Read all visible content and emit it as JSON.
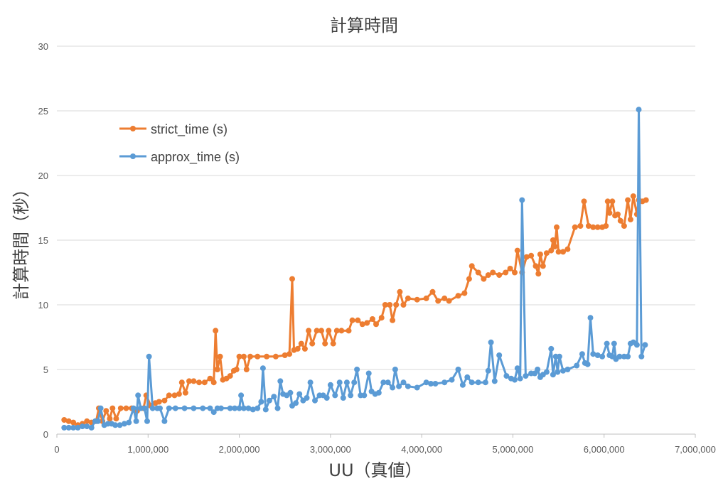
{
  "chart_data": {
    "type": "line",
    "title": "計算時間",
    "xlabel": "UU（真値）",
    "ylabel": "計算時間（秒）",
    "xlim": [
      0,
      7000000
    ],
    "ylim": [
      0,
      30
    ],
    "x_ticks": [
      0,
      1000000,
      2000000,
      3000000,
      4000000,
      5000000,
      6000000,
      7000000
    ],
    "x_tick_labels": [
      "0",
      "1,000,000",
      "2,000,000",
      "3,000,000",
      "4,000,000",
      "5,000,000",
      "6,000,000",
      "7,000,000"
    ],
    "y_ticks": [
      0,
      5,
      10,
      15,
      20,
      25,
      30
    ],
    "y_tick_labels": [
      "0",
      "5",
      "10",
      "15",
      "20",
      "25",
      "30"
    ],
    "grid": "horizontal",
    "legend_position": "upper-left",
    "colors": {
      "strict": "#ed7d31",
      "approx": "#5b9bd5",
      "grid": "#d9d9d9",
      "axis": "#bfbfbf"
    },
    "series": [
      {
        "name": "strict_time (s)",
        "points": [
          [
            80000,
            1.1
          ],
          [
            130000,
            1.0
          ],
          [
            180000,
            0.9
          ],
          [
            230000,
            0.7
          ],
          [
            280000,
            0.8
          ],
          [
            330000,
            1.0
          ],
          [
            380000,
            0.9
          ],
          [
            430000,
            1.0
          ],
          [
            460000,
            2.0
          ],
          [
            500000,
            1.0
          ],
          [
            540000,
            1.8
          ],
          [
            580000,
            1.2
          ],
          [
            610000,
            2.0
          ],
          [
            650000,
            1.2
          ],
          [
            700000,
            2.0
          ],
          [
            760000,
            2.0
          ],
          [
            820000,
            2.0
          ],
          [
            880000,
            1.8
          ],
          [
            950000,
            2.0
          ],
          [
            980000,
            3.0
          ],
          [
            1030000,
            2.2
          ],
          [
            1080000,
            2.4
          ],
          [
            1120000,
            2.5
          ],
          [
            1180000,
            2.6
          ],
          [
            1230000,
            3.0
          ],
          [
            1290000,
            3.0
          ],
          [
            1340000,
            3.1
          ],
          [
            1370000,
            4.0
          ],
          [
            1410000,
            3.2
          ],
          [
            1450000,
            4.1
          ],
          [
            1500000,
            4.1
          ],
          [
            1560000,
            4.0
          ],
          [
            1620000,
            4.0
          ],
          [
            1680000,
            4.3
          ],
          [
            1720000,
            4.0
          ],
          [
            1740000,
            8.0
          ],
          [
            1760000,
            5.0
          ],
          [
            1790000,
            6.0
          ],
          [
            1820000,
            4.2
          ],
          [
            1860000,
            4.3
          ],
          [
            1900000,
            4.5
          ],
          [
            1940000,
            4.9
          ],
          [
            1970000,
            5.0
          ],
          [
            2000000,
            6.0
          ],
          [
            2050000,
            6.0
          ],
          [
            2080000,
            5.0
          ],
          [
            2120000,
            6.0
          ],
          [
            2200000,
            6.0
          ],
          [
            2300000,
            6.0
          ],
          [
            2400000,
            6.0
          ],
          [
            2500000,
            6.1
          ],
          [
            2550000,
            6.2
          ],
          [
            2580000,
            12.0
          ],
          [
            2600000,
            6.5
          ],
          [
            2640000,
            6.6
          ],
          [
            2680000,
            7.0
          ],
          [
            2720000,
            6.6
          ],
          [
            2760000,
            8.0
          ],
          [
            2800000,
            7.0
          ],
          [
            2850000,
            8.0
          ],
          [
            2900000,
            8.0
          ],
          [
            2940000,
            7.0
          ],
          [
            2980000,
            8.0
          ],
          [
            3030000,
            7.0
          ],
          [
            3070000,
            8.0
          ],
          [
            3120000,
            8.0
          ],
          [
            3200000,
            8.0
          ],
          [
            3240000,
            8.8
          ],
          [
            3300000,
            8.8
          ],
          [
            3350000,
            8.5
          ],
          [
            3400000,
            8.6
          ],
          [
            3460000,
            8.9
          ],
          [
            3500000,
            8.5
          ],
          [
            3560000,
            9.0
          ],
          [
            3600000,
            10.0
          ],
          [
            3650000,
            10.0
          ],
          [
            3680000,
            8.8
          ],
          [
            3720000,
            10.0
          ],
          [
            3760000,
            11.0
          ],
          [
            3800000,
            10.0
          ],
          [
            3850000,
            10.5
          ],
          [
            3950000,
            10.4
          ],
          [
            4050000,
            10.5
          ],
          [
            4120000,
            11.0
          ],
          [
            4180000,
            10.3
          ],
          [
            4250000,
            10.5
          ],
          [
            4300000,
            10.3
          ],
          [
            4400000,
            10.7
          ],
          [
            4470000,
            10.9
          ],
          [
            4520000,
            12.0
          ],
          [
            4550000,
            13.0
          ],
          [
            4620000,
            12.5
          ],
          [
            4680000,
            12.0
          ],
          [
            4730000,
            12.3
          ],
          [
            4780000,
            12.5
          ],
          [
            4850000,
            12.3
          ],
          [
            4920000,
            12.5
          ],
          [
            4970000,
            12.8
          ],
          [
            5020000,
            12.5
          ],
          [
            5050000,
            14.2
          ],
          [
            5100000,
            12.5
          ],
          [
            5150000,
            13.7
          ],
          [
            5200000,
            13.8
          ],
          [
            5250000,
            13.0
          ],
          [
            5280000,
            12.4
          ],
          [
            5300000,
            13.9
          ],
          [
            5330000,
            13.0
          ],
          [
            5370000,
            14.0
          ],
          [
            5420000,
            14.2
          ],
          [
            5440000,
            15.0
          ],
          [
            5460000,
            14.5
          ],
          [
            5480000,
            16.0
          ],
          [
            5500000,
            14.1
          ],
          [
            5550000,
            14.1
          ],
          [
            5600000,
            14.3
          ],
          [
            5680000,
            16.0
          ],
          [
            5740000,
            16.1
          ],
          [
            5780000,
            18.0
          ],
          [
            5830000,
            16.1
          ],
          [
            5880000,
            16.0
          ],
          [
            5930000,
            16.0
          ],
          [
            5980000,
            16.0
          ],
          [
            6020000,
            16.1
          ],
          [
            6040000,
            18.0
          ],
          [
            6060000,
            17.1
          ],
          [
            6090000,
            18.0
          ],
          [
            6120000,
            16.9
          ],
          [
            6150000,
            17.0
          ],
          [
            6180000,
            16.5
          ],
          [
            6220000,
            16.1
          ],
          [
            6260000,
            18.1
          ],
          [
            6290000,
            16.6
          ],
          [
            6320000,
            18.4
          ],
          [
            6360000,
            17.0
          ],
          [
            6380000,
            18.1
          ],
          [
            6420000,
            18.0
          ],
          [
            6460000,
            18.1
          ]
        ]
      },
      {
        "name": "approx_time (s)",
        "points": [
          [
            80000,
            0.5
          ],
          [
            130000,
            0.5
          ],
          [
            180000,
            0.5
          ],
          [
            230000,
            0.5
          ],
          [
            280000,
            0.6
          ],
          [
            330000,
            0.6
          ],
          [
            380000,
            0.5
          ],
          [
            420000,
            1.0
          ],
          [
            450000,
            1.0
          ],
          [
            480000,
            2.0
          ],
          [
            520000,
            0.7
          ],
          [
            560000,
            0.8
          ],
          [
            600000,
            0.8
          ],
          [
            640000,
            0.7
          ],
          [
            690000,
            0.7
          ],
          [
            740000,
            0.8
          ],
          [
            790000,
            0.9
          ],
          [
            840000,
            2.0
          ],
          [
            870000,
            1.0
          ],
          [
            890000,
            3.0
          ],
          [
            920000,
            2.0
          ],
          [
            960000,
            2.0
          ],
          [
            990000,
            1.0
          ],
          [
            1010000,
            6.0
          ],
          [
            1050000,
            2.0
          ],
          [
            1100000,
            2.0
          ],
          [
            1130000,
            2.0
          ],
          [
            1180000,
            1.0
          ],
          [
            1230000,
            2.0
          ],
          [
            1300000,
            2.0
          ],
          [
            1400000,
            2.0
          ],
          [
            1500000,
            2.0
          ],
          [
            1600000,
            2.0
          ],
          [
            1680000,
            2.0
          ],
          [
            1720000,
            1.7
          ],
          [
            1760000,
            2.0
          ],
          [
            1800000,
            2.0
          ],
          [
            1900000,
            2.0
          ],
          [
            1950000,
            2.0
          ],
          [
            2000000,
            2.0
          ],
          [
            2020000,
            3.0
          ],
          [
            2050000,
            2.0
          ],
          [
            2100000,
            2.0
          ],
          [
            2150000,
            1.9
          ],
          [
            2200000,
            2.0
          ],
          [
            2240000,
            2.5
          ],
          [
            2260000,
            5.1
          ],
          [
            2290000,
            1.9
          ],
          [
            2330000,
            2.6
          ],
          [
            2380000,
            2.9
          ],
          [
            2420000,
            2.0
          ],
          [
            2450000,
            4.1
          ],
          [
            2480000,
            3.1
          ],
          [
            2520000,
            3.0
          ],
          [
            2560000,
            3.2
          ],
          [
            2580000,
            2.2
          ],
          [
            2620000,
            2.4
          ],
          [
            2660000,
            3.1
          ],
          [
            2700000,
            2.6
          ],
          [
            2740000,
            2.8
          ],
          [
            2780000,
            4.0
          ],
          [
            2830000,
            2.6
          ],
          [
            2880000,
            3.0
          ],
          [
            2920000,
            3.0
          ],
          [
            2960000,
            2.8
          ],
          [
            3000000,
            3.8
          ],
          [
            3050000,
            3.0
          ],
          [
            3100000,
            4.0
          ],
          [
            3140000,
            2.8
          ],
          [
            3180000,
            4.0
          ],
          [
            3220000,
            3.0
          ],
          [
            3260000,
            4.0
          ],
          [
            3290000,
            5.0
          ],
          [
            3330000,
            3.0
          ],
          [
            3370000,
            3.0
          ],
          [
            3420000,
            4.7
          ],
          [
            3450000,
            3.3
          ],
          [
            3490000,
            3.1
          ],
          [
            3530000,
            3.2
          ],
          [
            3580000,
            4.0
          ],
          [
            3630000,
            4.0
          ],
          [
            3680000,
            3.6
          ],
          [
            3710000,
            5.0
          ],
          [
            3750000,
            3.7
          ],
          [
            3800000,
            4.0
          ],
          [
            3850000,
            3.7
          ],
          [
            3950000,
            3.6
          ],
          [
            4050000,
            4.0
          ],
          [
            4100000,
            3.9
          ],
          [
            4150000,
            3.9
          ],
          [
            4250000,
            4.0
          ],
          [
            4330000,
            4.2
          ],
          [
            4400000,
            5.0
          ],
          [
            4450000,
            3.8
          ],
          [
            4500000,
            4.4
          ],
          [
            4550000,
            4.0
          ],
          [
            4620000,
            4.0
          ],
          [
            4700000,
            4.0
          ],
          [
            4730000,
            4.9
          ],
          [
            4760000,
            7.1
          ],
          [
            4800000,
            4.1
          ],
          [
            4850000,
            6.1
          ],
          [
            4930000,
            4.5
          ],
          [
            4980000,
            4.3
          ],
          [
            5020000,
            4.2
          ],
          [
            5050000,
            5.1
          ],
          [
            5080000,
            4.3
          ],
          [
            5100000,
            18.1
          ],
          [
            5140000,
            4.5
          ],
          [
            5200000,
            4.7
          ],
          [
            5240000,
            4.7
          ],
          [
            5270000,
            5.0
          ],
          [
            5300000,
            4.4
          ],
          [
            5330000,
            4.6
          ],
          [
            5370000,
            4.8
          ],
          [
            5420000,
            6.6
          ],
          [
            5440000,
            4.6
          ],
          [
            5470000,
            6.0
          ],
          [
            5490000,
            4.8
          ],
          [
            5510000,
            6.0
          ],
          [
            5550000,
            4.9
          ],
          [
            5600000,
            5.0
          ],
          [
            5700000,
            5.3
          ],
          [
            5760000,
            6.2
          ],
          [
            5790000,
            5.5
          ],
          [
            5820000,
            5.4
          ],
          [
            5850000,
            9.0
          ],
          [
            5880000,
            6.2
          ],
          [
            5930000,
            6.1
          ],
          [
            5980000,
            6.0
          ],
          [
            6030000,
            7.0
          ],
          [
            6060000,
            6.1
          ],
          [
            6090000,
            6.0
          ],
          [
            6110000,
            7.0
          ],
          [
            6130000,
            5.8
          ],
          [
            6170000,
            6.0
          ],
          [
            6220000,
            6.0
          ],
          [
            6260000,
            6.0
          ],
          [
            6290000,
            7.0
          ],
          [
            6320000,
            7.1
          ],
          [
            6360000,
            6.9
          ],
          [
            6380000,
            25.1
          ],
          [
            6410000,
            6.0
          ],
          [
            6450000,
            6.9
          ]
        ]
      }
    ]
  }
}
